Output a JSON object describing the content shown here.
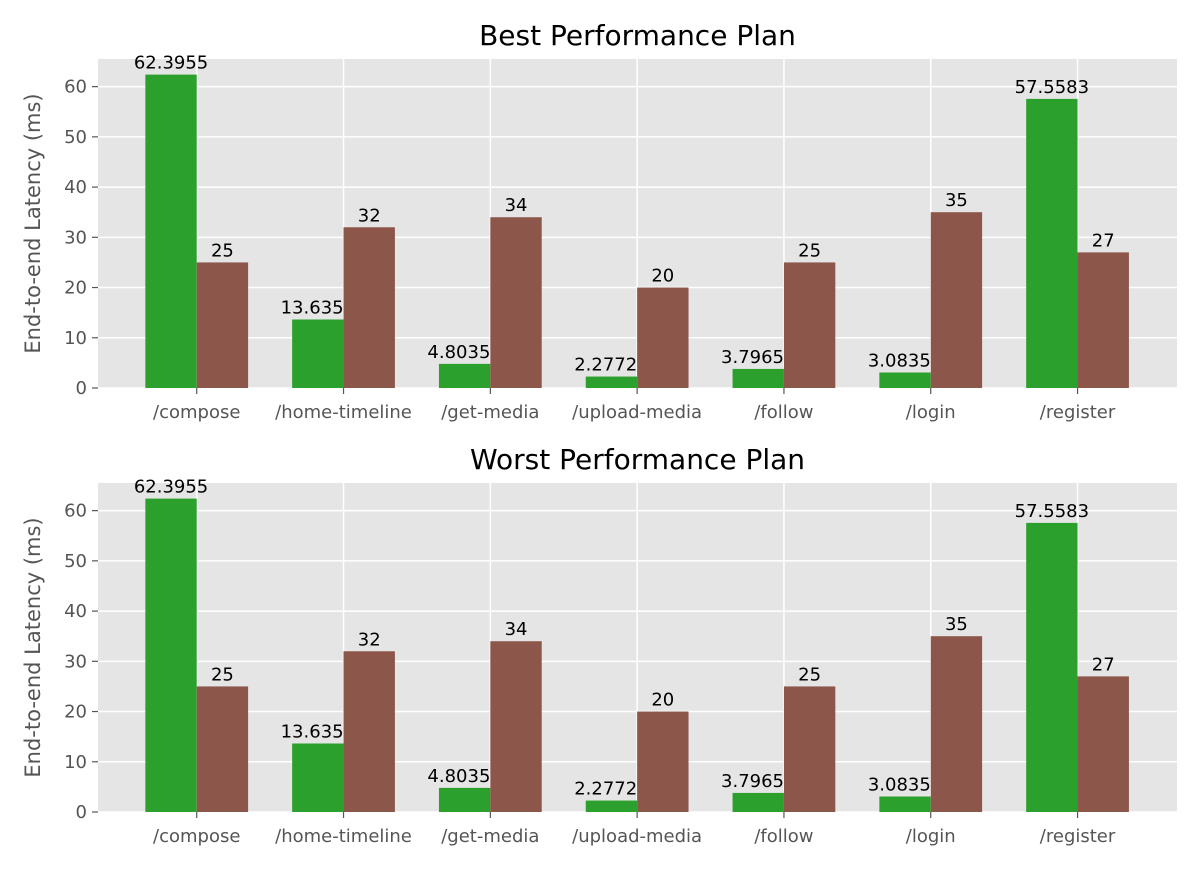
{
  "chart_data": [
    {
      "type": "bar",
      "title": "Best Performance Plan",
      "xlabel": "",
      "ylabel": "End-to-end Latency (ms)",
      "categories": [
        "/compose",
        "/home-timeline",
        "/get-media",
        "/upload-media",
        "/follow",
        "/login",
        "/register"
      ],
      "series": [
        {
          "values": [
            62.3955,
            13.6351,
            4.80359,
            2.27726,
            3.79651,
            3.08353,
            57.5583
          ],
          "labels": [
            "62.3955",
            "13.6351",
            "4.80359",
            "2.27726",
            "3.79651",
            "3.08353",
            "57.5583"
          ],
          "color": "#2ca02c"
        },
        {
          "values": [
            25,
            32,
            34,
            20,
            25,
            35,
            27
          ],
          "labels": [
            "25",
            "32",
            "34",
            "20",
            "25",
            "35",
            "27"
          ],
          "color": "#8c564b"
        }
      ],
      "yticks": [
        0,
        10,
        20,
        30,
        40,
        50,
        60
      ],
      "ylim": [
        0,
        65.5
      ],
      "grid": true,
      "legend": "none",
      "background": "#e5e5e5"
    },
    {
      "type": "bar",
      "title": "Worst Performance Plan",
      "xlabel": "",
      "ylabel": "End-to-end Latency (ms)",
      "categories": [
        "/compose",
        "/home-timeline",
        "/get-media",
        "/upload-media",
        "/follow",
        "/login",
        "/register"
      ],
      "series": [
        {
          "values": [
            62.3955,
            13.6351,
            4.80359,
            2.27726,
            3.79651,
            3.08353,
            57.5583
          ],
          "labels": [
            "62.3955",
            "13.6351",
            "4.80359",
            "2.27726",
            "3.79651",
            "3.08353",
            "57.5583"
          ],
          "color": "#2ca02c"
        },
        {
          "values": [
            25,
            32,
            34,
            20,
            25,
            35,
            27
          ],
          "labels": [
            "25",
            "32",
            "34",
            "20",
            "25",
            "35",
            "27"
          ],
          "color": "#8c564b"
        }
      ],
      "yticks": [
        0,
        10,
        20,
        30,
        40,
        50,
        60
      ],
      "ylim": [
        0,
        65.5
      ],
      "grid": true,
      "legend": "none",
      "background": "#e5e5e5"
    }
  ]
}
